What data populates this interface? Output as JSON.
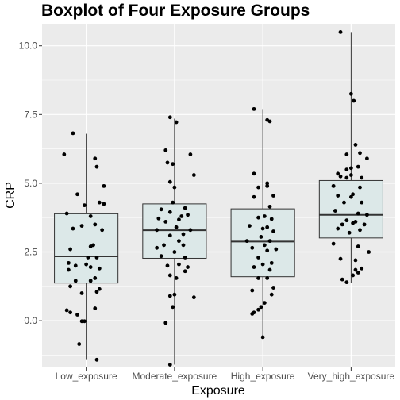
{
  "chart_data": {
    "type": "box",
    "title": "Boxplot of Four Exposure Groups",
    "xlabel": "Exposure",
    "ylabel": "CRP",
    "categories": [
      "Low_exposure",
      "Moderate_exposure",
      "High_exposure",
      "Very_high_exposure"
    ],
    "ylim": [
      -1.7,
      10.8
    ],
    "yticks": [
      0.0,
      2.5,
      5.0,
      7.5,
      10.0
    ],
    "ytick_labels": [
      "0.0",
      "2.5",
      "5.0",
      "7.5",
      "10.0"
    ],
    "grid": true,
    "box_fill": "#dce8e8",
    "panel_background": "#ebebeb",
    "boxes": [
      {
        "name": "Low_exposure",
        "whisker_low": -1.4,
        "q1": 1.37,
        "median": 2.34,
        "q3": 3.89,
        "whisker_high": 6.8
      },
      {
        "name": "Moderate_exposure",
        "whisker_low": -1.6,
        "q1": 2.27,
        "median": 3.29,
        "q3": 4.25,
        "whisker_high": 7.35
      },
      {
        "name": "High_exposure",
        "whisker_low": -0.6,
        "q1": 1.6,
        "median": 2.88,
        "q3": 4.07,
        "whisker_high": 7.7
      },
      {
        "name": "Very_high_exposure",
        "whisker_low": 1.38,
        "q1": 3.01,
        "median": 3.85,
        "q3": 5.1,
        "whisker_high": 10.5
      }
    ],
    "points": [
      [
        [
          -0.15,
          6.82
        ],
        [
          -0.25,
          6.05
        ],
        [
          0.1,
          5.9
        ],
        [
          0.2,
          4.9
        ],
        [
          0.12,
          5.6
        ],
        [
          -0.1,
          4.6
        ],
        [
          0.15,
          4.3
        ],
        [
          -0.02,
          4.2
        ],
        [
          0.2,
          4.25
        ],
        [
          -0.22,
          3.9
        ],
        [
          0.05,
          3.8
        ],
        [
          0.1,
          3.5
        ],
        [
          -0.05,
          3.45
        ],
        [
          -0.15,
          3.35
        ],
        [
          0.18,
          3.3
        ],
        [
          0.08,
          2.75
        ],
        [
          0.05,
          2.7
        ],
        [
          -0.18,
          2.6
        ],
        [
          0.12,
          2.3
        ],
        [
          0.02,
          2.3
        ],
        [
          -0.2,
          2.1
        ],
        [
          0.0,
          2.05
        ],
        [
          -0.12,
          2.0
        ],
        [
          0.05,
          1.95
        ],
        [
          0.15,
          1.9
        ],
        [
          -0.2,
          1.85
        ],
        [
          0.1,
          1.55
        ],
        [
          -0.12,
          1.45
        ],
        [
          0.05,
          1.45
        ],
        [
          -0.18,
          1.25
        ],
        [
          0.15,
          1.15
        ],
        [
          -0.05,
          1.0
        ],
        [
          0.12,
          1.05
        ],
        [
          -0.22,
          0.38
        ],
        [
          -0.18,
          0.3
        ],
        [
          -0.1,
          0.22
        ],
        [
          0.1,
          0.45
        ],
        [
          -0.05,
          -0.02
        ],
        [
          -0.02,
          -0.02
        ],
        [
          -0.08,
          -0.85
        ],
        [
          0.12,
          -1.42
        ]
      ],
      [
        [
          -0.05,
          7.4
        ],
        [
          0.02,
          7.22
        ],
        [
          -0.1,
          6.2
        ],
        [
          0.18,
          6.05
        ],
        [
          -0.08,
          5.75
        ],
        [
          -0.02,
          5.7
        ],
        [
          0.22,
          5.3
        ],
        [
          -0.05,
          5.05
        ],
        [
          0.0,
          4.85
        ],
        [
          -0.02,
          4.3
        ],
        [
          -0.15,
          4.05
        ],
        [
          0.12,
          4.1
        ],
        [
          -0.05,
          3.95
        ],
        [
          0.15,
          3.85
        ],
        [
          0.08,
          3.8
        ],
        [
          -0.18,
          3.72
        ],
        [
          0.05,
          3.68
        ],
        [
          -0.1,
          3.6
        ],
        [
          0.02,
          3.4
        ],
        [
          -0.2,
          3.3
        ],
        [
          0.18,
          3.3
        ],
        [
          0.1,
          3.15
        ],
        [
          -0.05,
          3.1
        ],
        [
          0.05,
          2.9
        ],
        [
          0.1,
          2.75
        ],
        [
          -0.12,
          2.75
        ],
        [
          -0.2,
          2.65
        ],
        [
          0.0,
          2.5
        ],
        [
          -0.15,
          2.35
        ],
        [
          0.12,
          2.3
        ],
        [
          0.05,
          2.05
        ],
        [
          -0.08,
          2.0
        ],
        [
          0.15,
          1.95
        ],
        [
          0.12,
          1.8
        ],
        [
          -0.05,
          1.65
        ],
        [
          0.02,
          1.55
        ],
        [
          0.0,
          0.95
        ],
        [
          -0.05,
          0.9
        ],
        [
          0.22,
          0.85
        ],
        [
          -0.02,
          0.5
        ],
        [
          -0.1,
          -0.08
        ],
        [
          -0.05,
          -1.6
        ]
      ],
      [
        [
          -0.1,
          7.7
        ],
        [
          0.05,
          7.3
        ],
        [
          0.08,
          7.25
        ],
        [
          -0.1,
          5.35
        ],
        [
          0.05,
          5.0
        ],
        [
          0.05,
          4.9
        ],
        [
          -0.05,
          4.85
        ],
        [
          -0.1,
          4.5
        ],
        [
          0.12,
          4.55
        ],
        [
          0.08,
          4.15
        ],
        [
          0.02,
          3.8
        ],
        [
          -0.05,
          3.75
        ],
        [
          0.1,
          3.7
        ],
        [
          -0.15,
          3.45
        ],
        [
          0.05,
          3.4
        ],
        [
          0.0,
          3.35
        ],
        [
          0.12,
          3.25
        ],
        [
          -0.02,
          3.05
        ],
        [
          -0.18,
          2.9
        ],
        [
          0.08,
          2.9
        ],
        [
          0.02,
          2.75
        ],
        [
          -0.12,
          2.65
        ],
        [
          0.15,
          2.6
        ],
        [
          0.05,
          2.55
        ],
        [
          -0.05,
          2.3
        ],
        [
          0.1,
          2.1
        ],
        [
          0.0,
          2.05
        ],
        [
          -0.1,
          1.95
        ],
        [
          0.08,
          1.85
        ],
        [
          -0.05,
          1.55
        ],
        [
          0.05,
          1.55
        ],
        [
          0.12,
          1.2
        ],
        [
          -0.12,
          1.1
        ],
        [
          0.1,
          0.95
        ],
        [
          0.02,
          0.65
        ],
        [
          -0.02,
          0.5
        ],
        [
          -0.05,
          0.4
        ],
        [
          -0.1,
          0.3
        ],
        [
          -0.12,
          0.25
        ],
        [
          0.0,
          -0.6
        ]
      ],
      [
        [
          -0.12,
          10.5
        ],
        [
          0.0,
          8.25
        ],
        [
          0.03,
          8.0
        ],
        [
          0.05,
          6.4
        ],
        [
          0.1,
          6.1
        ],
        [
          -0.05,
          6.05
        ],
        [
          0.18,
          5.9
        ],
        [
          0.0,
          5.55
        ],
        [
          -0.05,
          5.5
        ],
        [
          -0.15,
          5.35
        ],
        [
          0.08,
          5.6
        ],
        [
          0.0,
          5.3
        ],
        [
          -0.12,
          5.25
        ],
        [
          -0.05,
          5.2
        ],
        [
          0.12,
          5.2
        ],
        [
          -0.2,
          4.9
        ],
        [
          0.1,
          4.85
        ],
        [
          0.02,
          4.6
        ],
        [
          -0.15,
          4.55
        ],
        [
          0.0,
          4.5
        ],
        [
          -0.08,
          4.3
        ],
        [
          0.12,
          4.3
        ],
        [
          -0.18,
          4.0
        ],
        [
          0.08,
          3.9
        ],
        [
          0.18,
          3.85
        ],
        [
          -0.05,
          3.65
        ],
        [
          0.05,
          3.6
        ],
        [
          0.02,
          3.55
        ],
        [
          -0.1,
          3.5
        ],
        [
          0.15,
          3.5
        ],
        [
          -0.15,
          3.35
        ],
        [
          0.1,
          3.3
        ],
        [
          -0.02,
          3.2
        ],
        [
          -0.2,
          2.8
        ],
        [
          0.08,
          2.7
        ],
        [
          0.2,
          2.5
        ],
        [
          -0.12,
          2.25
        ],
        [
          0.05,
          2.2
        ],
        [
          0.12,
          1.9
        ],
        [
          0.05,
          1.85
        ],
        [
          0.08,
          1.75
        ],
        [
          -0.1,
          1.5
        ],
        [
          -0.05,
          1.4
        ],
        [
          0.02,
          1.65
        ]
      ]
    ]
  }
}
